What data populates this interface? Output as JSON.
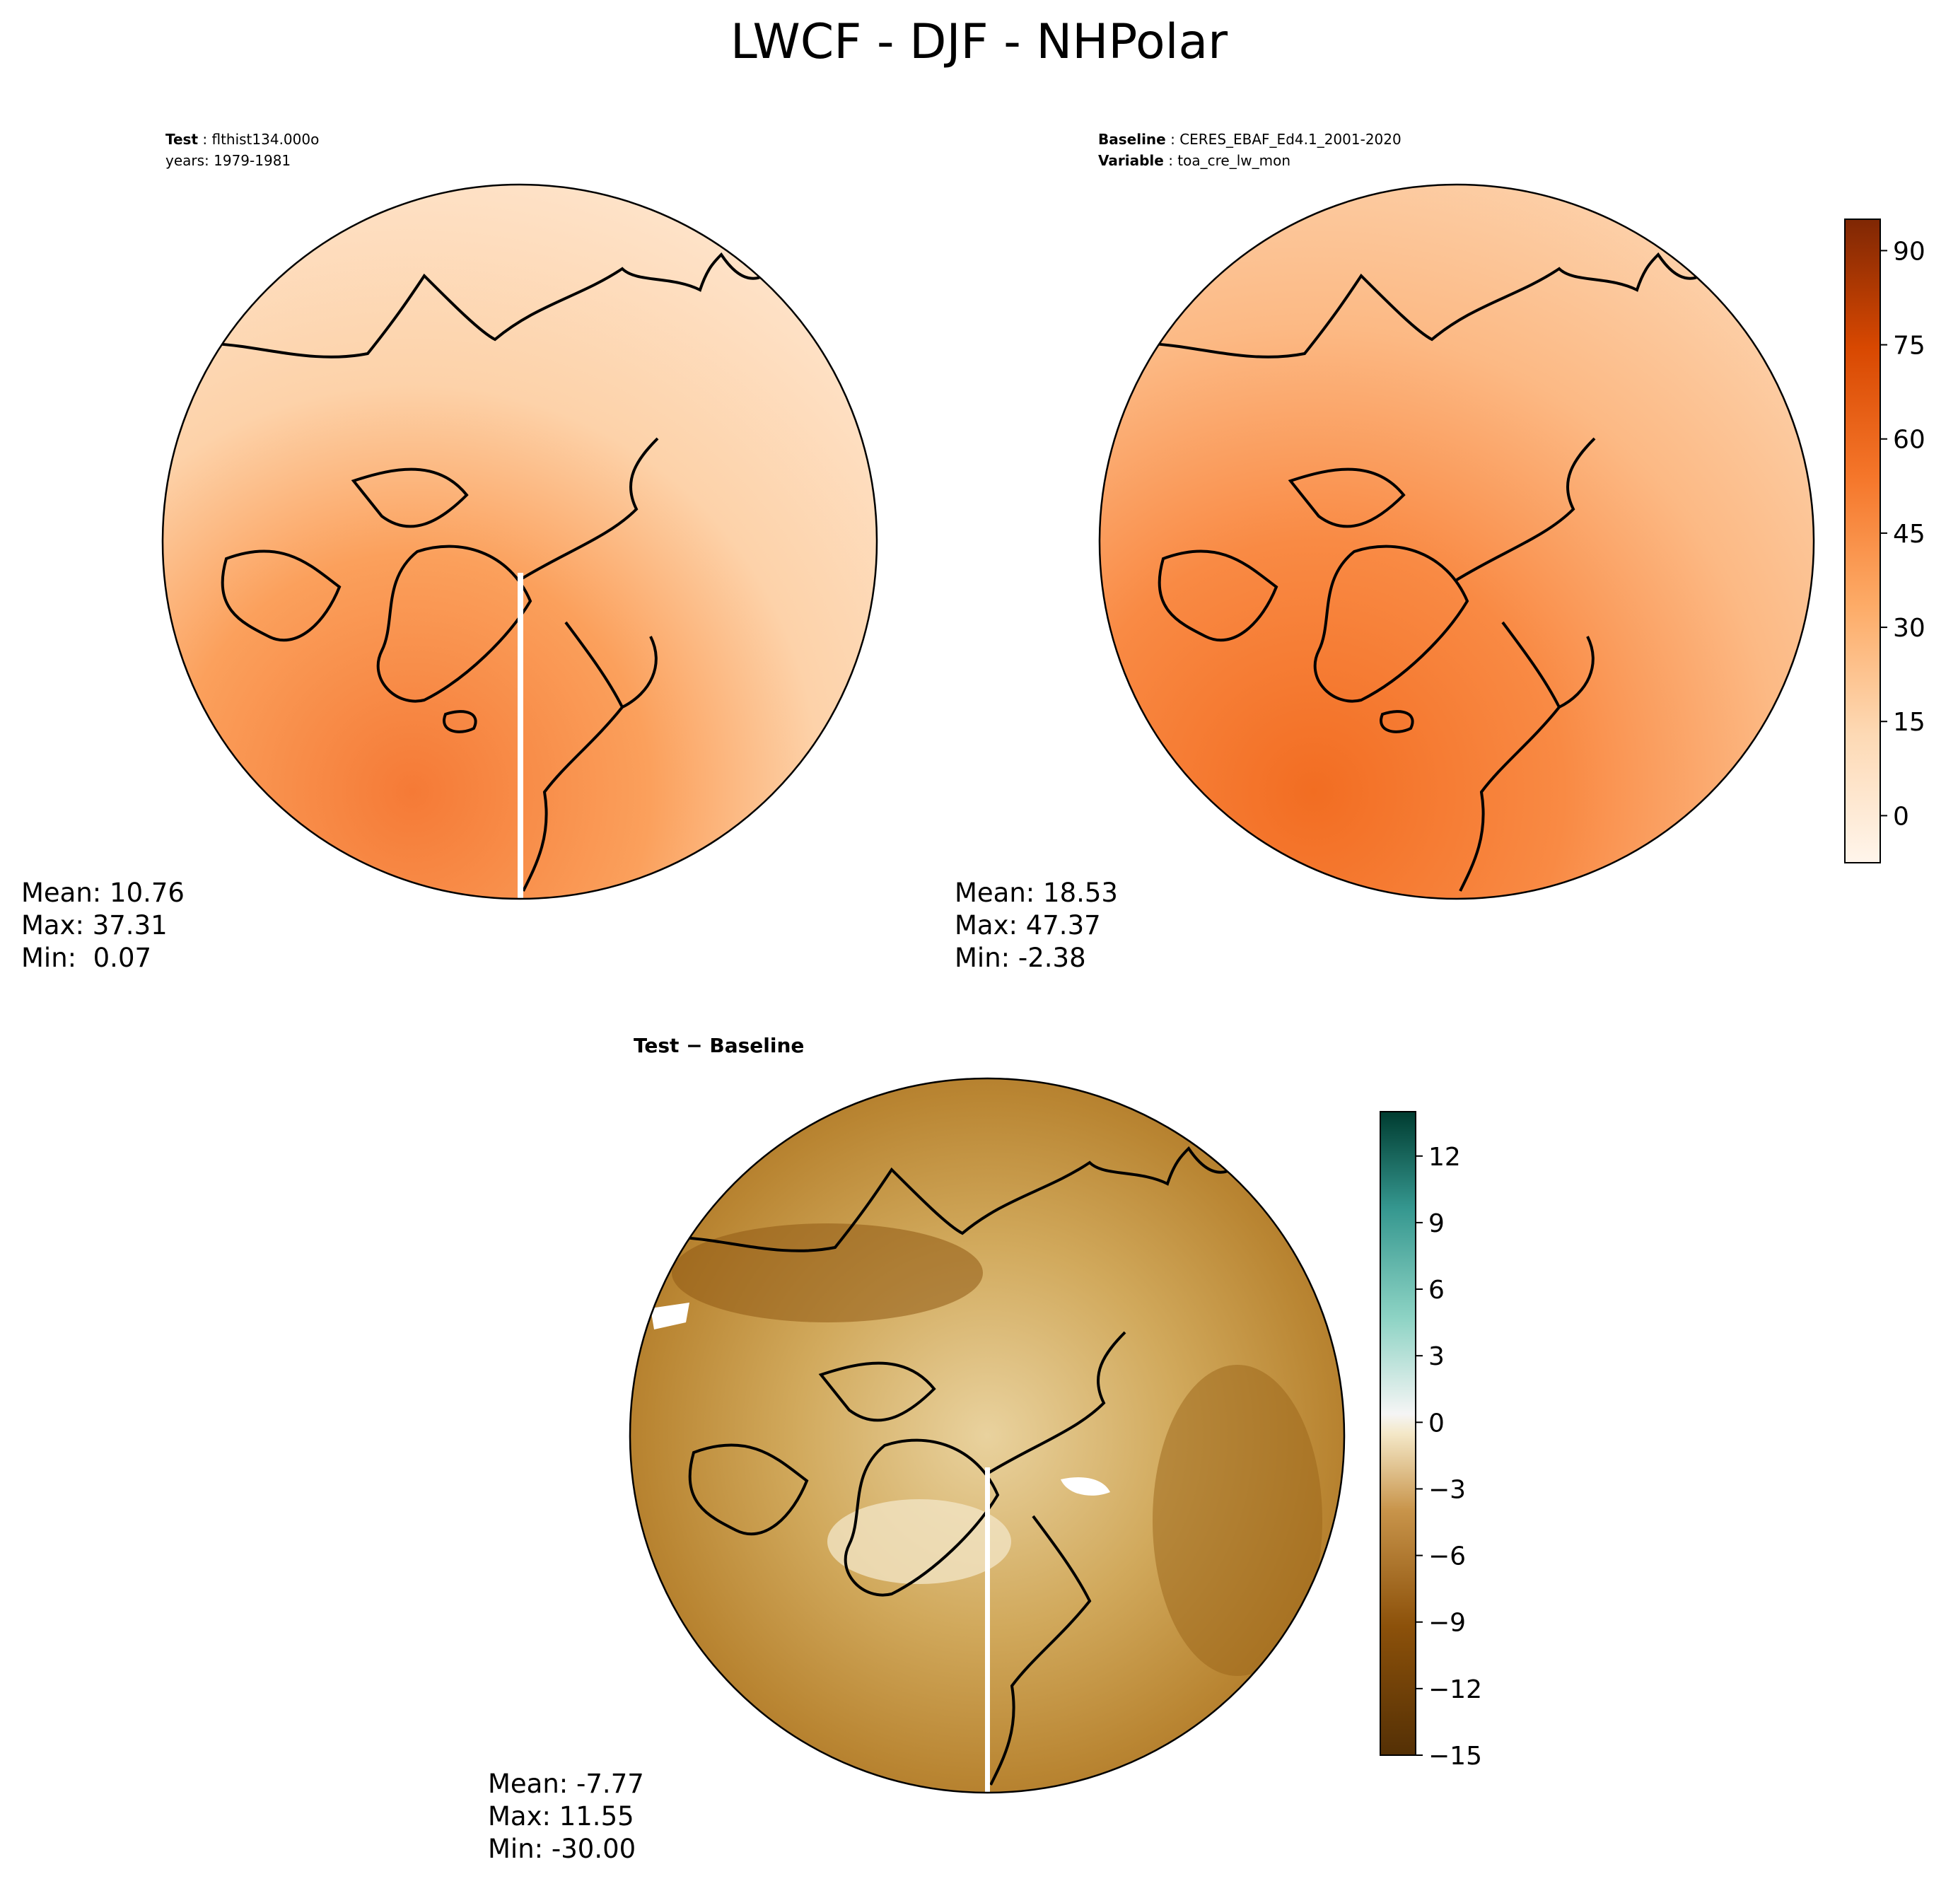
{
  "figure": {
    "title": "LWCF - DJF - NHPolar"
  },
  "panels": {
    "test": {
      "header_label_1": "Test",
      "header_value_1": "flthist134.000o",
      "header_line_2": "years: 1979-1981",
      "mean": "Mean: 10.76",
      "max": "Max: 37.31",
      "min": "Min:  0.07"
    },
    "baseline": {
      "header_label_1": "Baseline",
      "header_value_1": "CERES_EBAF_Ed4.1_2001-2020",
      "header_label_2": "Variable",
      "header_value_2": "toa_cre_lw_mon",
      "mean": "Mean: 18.53",
      "max": "Max: 47.37",
      "min": "Min: -2.38"
    },
    "diff": {
      "title": "Test − Baseline",
      "mean": "Mean: -7.77",
      "max": "Max: 11.55",
      "min": "Min: -30.00"
    }
  },
  "chart_data": [
    {
      "type": "heatmap",
      "projection": "north-polar-stereographic",
      "panel": "test",
      "summary": {
        "mean": 10.76,
        "max": 37.31,
        "min": 0.07
      },
      "colormap": "Oranges",
      "colorbar_shared_with": "baseline"
    },
    {
      "type": "heatmap",
      "projection": "north-polar-stereographic",
      "panel": "baseline",
      "summary": {
        "mean": 18.53,
        "max": 47.37,
        "min": -2.38
      },
      "colormap": "Oranges",
      "colorbar": {
        "range": [
          -7.5,
          95
        ],
        "ticks": [
          0,
          15,
          30,
          45,
          60,
          75,
          90
        ],
        "tick_labels": [
          "0",
          "15",
          "30",
          "45",
          "60",
          "75",
          "90"
        ]
      }
    },
    {
      "type": "heatmap",
      "projection": "north-polar-stereographic",
      "panel": "diff",
      "summary": {
        "mean": -7.77,
        "max": 11.55,
        "min": -30.0
      },
      "colormap": "BrBG",
      "colorbar": {
        "range": [
          -15,
          14
        ],
        "ticks": [
          -15,
          -12,
          -9,
          -6,
          -3,
          0,
          3,
          6,
          9,
          12
        ],
        "tick_labels": [
          "−15",
          "−12",
          "−9",
          "−6",
          "−3",
          "0",
          "3",
          "6",
          "9",
          "12"
        ]
      }
    }
  ]
}
